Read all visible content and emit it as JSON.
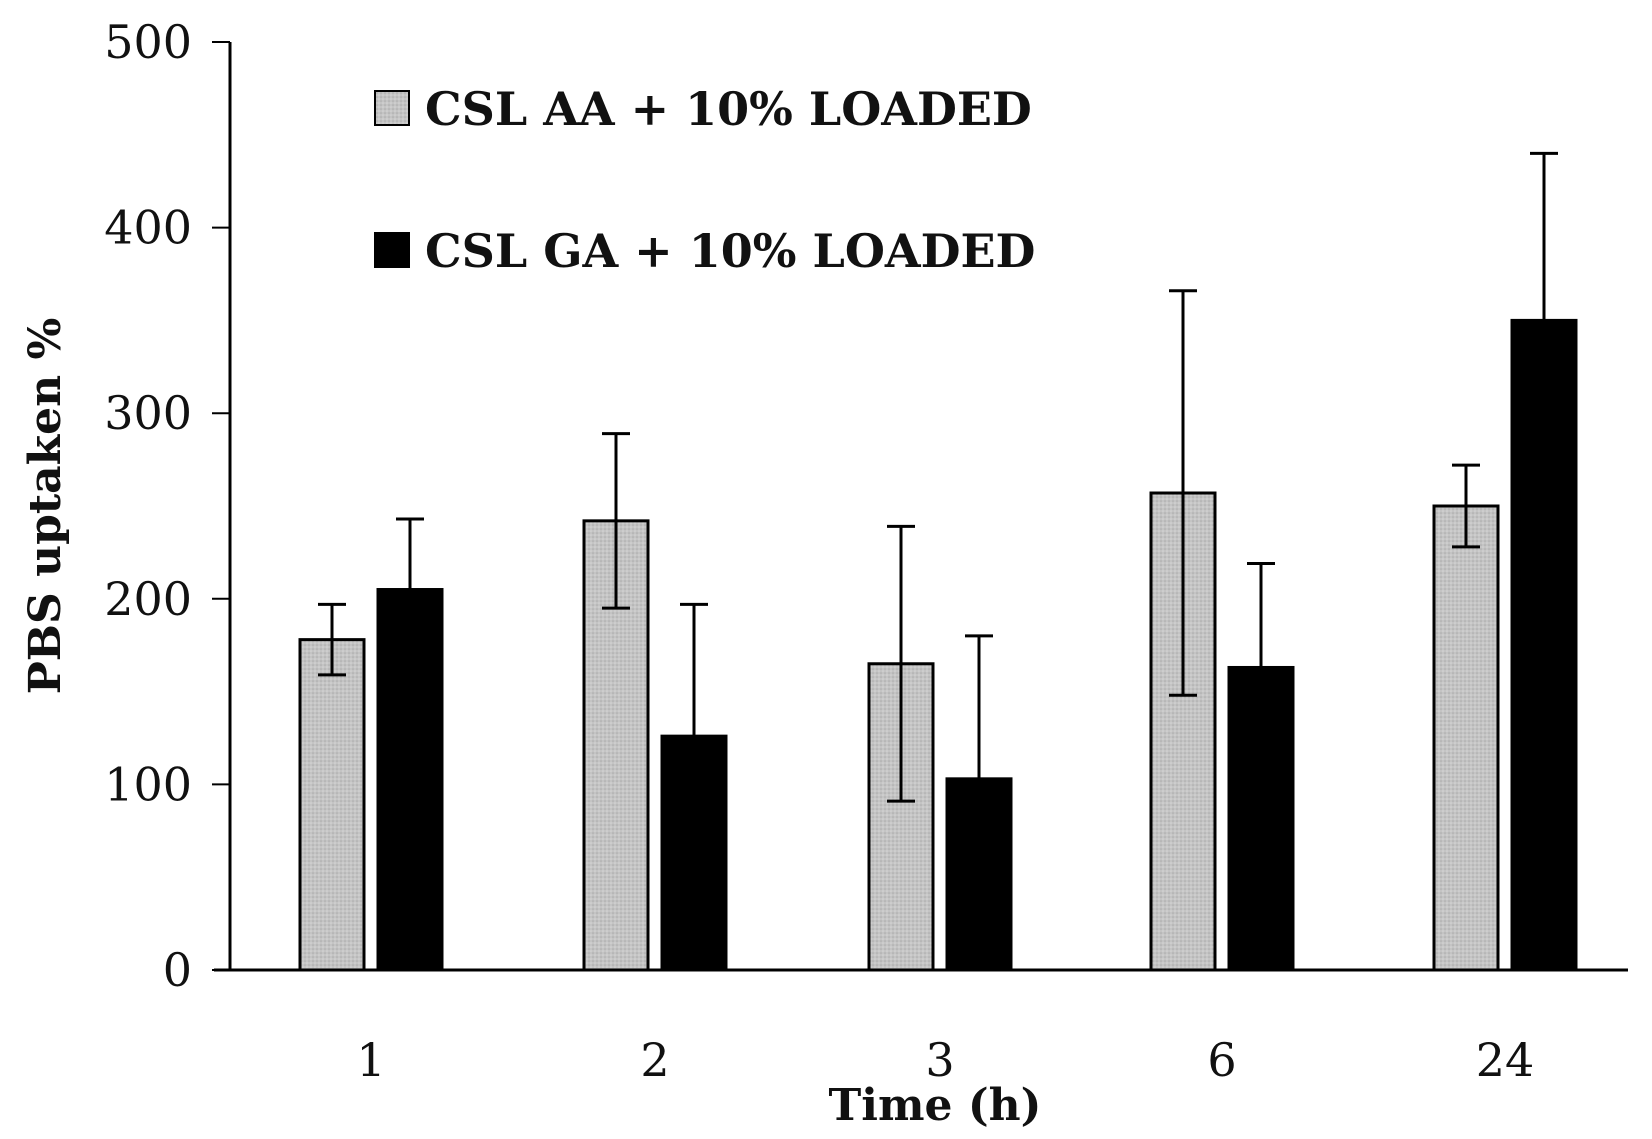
{
  "chart_data": {
    "type": "bar",
    "title": "",
    "xlabel": "Time (h)",
    "ylabel": "PBS uptaken %",
    "categories": [
      "1",
      "2",
      "3",
      "6",
      "24"
    ],
    "ylim": [
      0,
      500
    ],
    "yticks": [
      0,
      100,
      200,
      300,
      400,
      500
    ],
    "grid": false,
    "legend_position": "top-left",
    "series": [
      {
        "name": "CSL AA + 10% LOADED",
        "color": "#c8c8c8",
        "values": [
          178,
          242,
          165,
          257,
          250
        ],
        "errors": [
          19,
          47,
          74,
          109,
          22
        ]
      },
      {
        "name": "CSL GA + 10% LOADED",
        "color": "#000000",
        "values": [
          205,
          126,
          103,
          163,
          350
        ],
        "errors": [
          38,
          71,
          77,
          56,
          90
        ]
      }
    ]
  }
}
